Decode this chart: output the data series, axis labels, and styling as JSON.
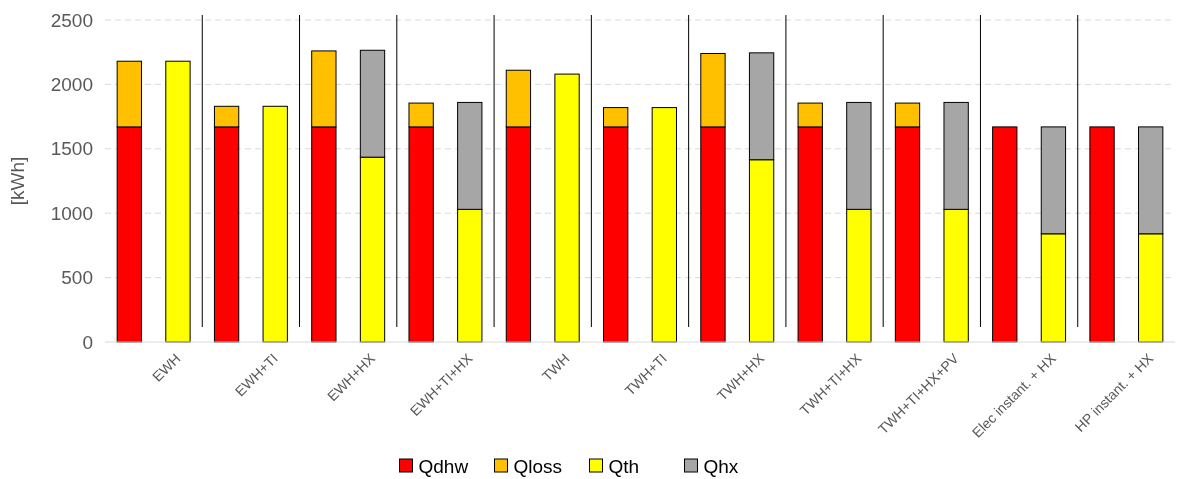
{
  "chart_data": {
    "type": "bar",
    "stacked": true,
    "ylabel": "[kWh]",
    "ylim": [
      0,
      2500
    ],
    "yticks": [
      0,
      500,
      1000,
      1500,
      2000,
      2500
    ],
    "grid": "y",
    "legend": "bottom",
    "categories": [
      null,
      "EWH",
      null,
      "EWH+TI",
      null,
      "EWH+HX",
      null,
      "EWH+TI+HX",
      null,
      "TWH",
      null,
      "TWH+TI",
      null,
      "TWH+HX",
      null,
      "TWH+TI+HX",
      null,
      "TWH+TI+HX+PV",
      null,
      "Elec instant. + HX",
      null,
      "HP instant. + HX"
    ],
    "series": [
      {
        "name": "Qdhw",
        "color": "#ff0000",
        "values": [
          1670,
          null,
          1670,
          null,
          1670,
          null,
          1670,
          null,
          1670,
          null,
          1670,
          null,
          1670,
          null,
          1670,
          null,
          1670,
          null,
          1670,
          null,
          1670,
          null
        ]
      },
      {
        "name": "Qloss",
        "color": "#ffc000",
        "values": [
          510,
          null,
          160,
          null,
          590,
          null,
          185,
          null,
          440,
          null,
          150,
          null,
          570,
          null,
          185,
          null,
          185,
          null,
          null,
          null,
          null,
          null
        ]
      },
      {
        "name": "Qth",
        "color": "#ffff00",
        "values": [
          null,
          2180,
          null,
          1830,
          null,
          1435,
          null,
          1030,
          null,
          2080,
          null,
          1820,
          null,
          1415,
          null,
          1030,
          null,
          1030,
          null,
          840,
          null,
          840
        ]
      },
      {
        "name": "Qhx",
        "color": "#a6a6a6",
        "values": [
          null,
          null,
          null,
          null,
          null,
          830,
          null,
          830,
          null,
          null,
          null,
          null,
          null,
          830,
          null,
          830,
          null,
          830,
          null,
          830,
          null,
          830
        ]
      }
    ]
  }
}
